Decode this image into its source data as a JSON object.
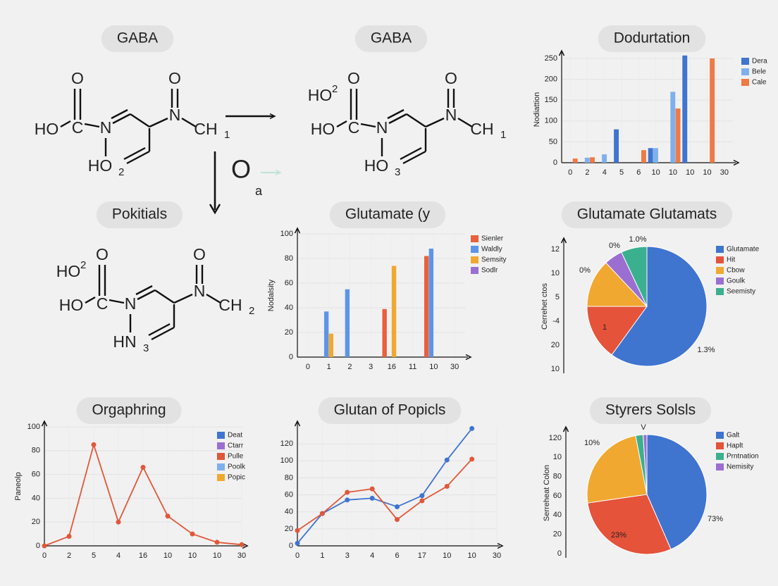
{
  "diagrams": [
    {
      "title": "GABA",
      "atoms": [
        "O",
        "C",
        "HO",
        "N",
        "O",
        "N",
        "CH",
        "1",
        "HO",
        "2"
      ]
    },
    {
      "title": "GABA",
      "prefix": [
        "HO",
        "2"
      ],
      "atoms": [
        "O",
        "C",
        "HO",
        "N",
        "O",
        "N",
        "CH",
        "1",
        "HO",
        "3"
      ]
    },
    {
      "title": "Pokitials",
      "prefix": [
        "HO",
        "2"
      ],
      "atoms": [
        "O",
        "C",
        "HO",
        "N",
        "O",
        "N",
        "CH",
        "2",
        "HN",
        "3"
      ]
    }
  ],
  "reaction": {
    "annotations": [
      "O",
      "a"
    ]
  },
  "chart_data": [
    {
      "type": "bar",
      "title": "Dodurtation",
      "ylabel": "Nodiattion",
      "categories": [
        "0",
        "2",
        "4",
        "5",
        "6",
        "10",
        "10",
        "10",
        "10",
        "30"
      ],
      "series": [
        {
          "name": "Dera",
          "color": "#3f74cf",
          "values": [
            null,
            null,
            null,
            80,
            null,
            35,
            null,
            257,
            null,
            null
          ]
        },
        {
          "name": "Bele",
          "color": "#7fb0ee",
          "values": [
            null,
            12,
            20,
            null,
            null,
            35,
            170,
            null,
            null,
            null
          ]
        },
        {
          "name": "Cale",
          "color": "#ee7a45",
          "values": [
            10,
            13,
            null,
            null,
            30,
            null,
            130,
            null,
            250,
            null
          ]
        }
      ],
      "ylim": [
        0,
        255
      ],
      "yticks": [
        0,
        50,
        100,
        150,
        200,
        250
      ],
      "grid": true
    },
    {
      "type": "bar",
      "title": "Glutamate (y",
      "ylabel": "Nodalsity",
      "categories": [
        "0",
        "1",
        "2",
        "3",
        "16",
        "11",
        "10",
        "30"
      ],
      "series": [
        {
          "name": "Sienler",
          "color": "#e8603c",
          "values": [
            null,
            null,
            null,
            null,
            39,
            null,
            82,
            null
          ]
        },
        {
          "name": "Waldly",
          "color": "#5d95e6",
          "values": [
            null,
            37,
            55,
            null,
            null,
            null,
            88,
            null
          ]
        },
        {
          "name": "Semsity",
          "color": "#f0a830",
          "values": [
            null,
            19,
            null,
            null,
            74,
            null,
            null,
            null
          ]
        },
        {
          "name": "Sodlr",
          "color": "#9b6fd1",
          "values": [
            null,
            null,
            null,
            null,
            null,
            null,
            null,
            null
          ]
        }
      ],
      "ylim": [
        0,
        100
      ],
      "yticks": [
        0,
        20,
        40,
        60,
        80,
        100
      ],
      "grid": true
    },
    {
      "type": "pie",
      "title": "Glutamate Glutamats",
      "ylabel": "Cerrehet ctos",
      "axis_ticks": [
        "12",
        "10",
        "5",
        "-4",
        "20",
        "10"
      ],
      "categories": [
        "Glutamate",
        "Hit",
        "Cbow",
        "Goulk",
        "Seemisty"
      ],
      "values": [
        60,
        15,
        13,
        5,
        7
      ],
      "colors": [
        "#3f74cf",
        "#e4533a",
        "#f0a830",
        "#9b6fd1",
        "#3bb08f"
      ],
      "annotations": [
        "0%",
        "0%",
        "1.0%",
        "1",
        "1.3%"
      ]
    },
    {
      "type": "line",
      "title": "Orgaphring",
      "ylabel": "Paneolp",
      "categories": [
        "0",
        "2",
        "5",
        "4",
        "16",
        "10",
        "10",
        "10",
        "30"
      ],
      "series": [
        {
          "name": "Deat",
          "color": "#3f74cf",
          "values": [
            null,
            null,
            null,
            null,
            null,
            null,
            null,
            null,
            null
          ]
        },
        {
          "name": "Ctarr",
          "color": "#9b6fd1",
          "values": [
            null,
            null,
            null,
            null,
            null,
            null,
            null,
            null,
            null
          ]
        },
        {
          "name": "Pulle",
          "color": "#e0583a",
          "values": [
            0,
            8,
            85,
            20,
            66,
            25,
            10,
            3,
            1
          ]
        },
        {
          "name": "Poolk",
          "color": "#7fb0ee",
          "values": [
            null,
            null,
            null,
            null,
            null,
            null,
            null,
            null,
            null
          ]
        },
        {
          "name": "Popic",
          "color": "#f0a830",
          "values": [
            null,
            null,
            null,
            null,
            null,
            null,
            null,
            null,
            null
          ]
        }
      ],
      "ylim": [
        0,
        100
      ],
      "yticks": [
        0,
        20,
        40,
        60,
        80,
        100
      ],
      "grid": true
    },
    {
      "type": "line",
      "title": "Glutan of Popicls",
      "categories": [
        "0",
        "1",
        "3",
        "4",
        "6",
        "17",
        "10",
        "10",
        "30"
      ],
      "series": [
        {
          "color": "#3f74cf",
          "values": [
            3,
            38,
            54,
            56,
            46,
            59,
            101,
            138,
            null
          ]
        },
        {
          "color": "#e0583a",
          "values": [
            18,
            38,
            63,
            67,
            31,
            53,
            70,
            102,
            null
          ]
        }
      ],
      "ylim": [
        0,
        140
      ],
      "yticks": [
        0,
        20,
        40,
        60,
        80,
        100,
        120
      ],
      "grid": true
    },
    {
      "type": "pie",
      "title": "Styrers Solsls",
      "ylabel": "Serreheat Colon",
      "axis_ticks": [
        "120",
        "10",
        "80",
        "60",
        "40",
        "20",
        "0"
      ],
      "categories": [
        "Galt",
        "Haplt",
        null,
        "Prntnation",
        "Nemisity"
      ],
      "values": [
        43,
        29,
        24,
        2,
        1
      ],
      "colors": [
        "#3f74cf",
        "#e4533a",
        "#f0a830",
        "#3bb08f",
        "#9b6fd1"
      ],
      "annotations": [
        "10%",
        "23%",
        "73%",
        "V"
      ]
    }
  ]
}
